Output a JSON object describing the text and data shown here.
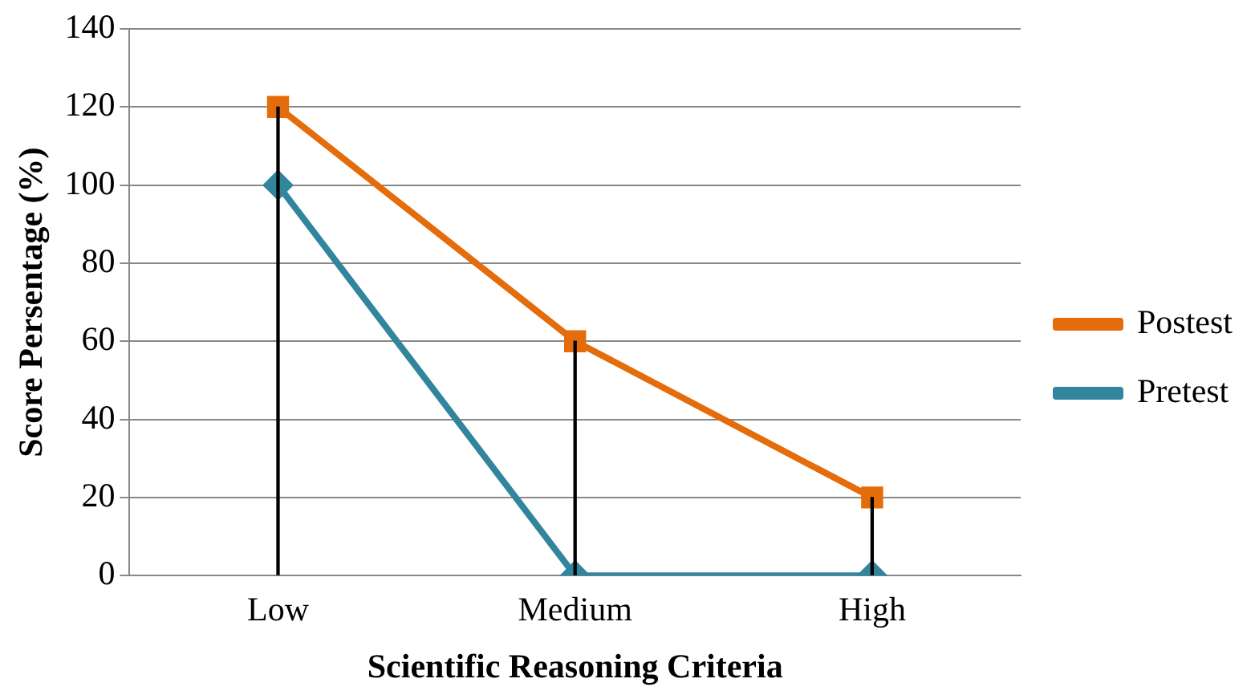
{
  "chart_data": {
    "type": "line",
    "xlabel": "Scientific Reasoning Criteria",
    "ylabel": "Score Persentage (%)",
    "categories": [
      "Low",
      "Medium",
      "High"
    ],
    "series": [
      {
        "type": "bar",
        "color": "#000000",
        "values": [
          120,
          60,
          20
        ]
      },
      {
        "name": "Postest",
        "color": "#e46c0a",
        "marker": "square",
        "values": [
          120,
          60,
          20
        ]
      },
      {
        "name": "Pretest",
        "color": "#31859c",
        "marker": "diamond",
        "values": [
          100,
          0,
          0
        ]
      }
    ],
    "ylim": [
      0,
      140
    ],
    "yticks": [
      0,
      20,
      40,
      60,
      80,
      100,
      120,
      140
    ],
    "grid": "y",
    "legend": "right",
    "line_style": "solid"
  }
}
